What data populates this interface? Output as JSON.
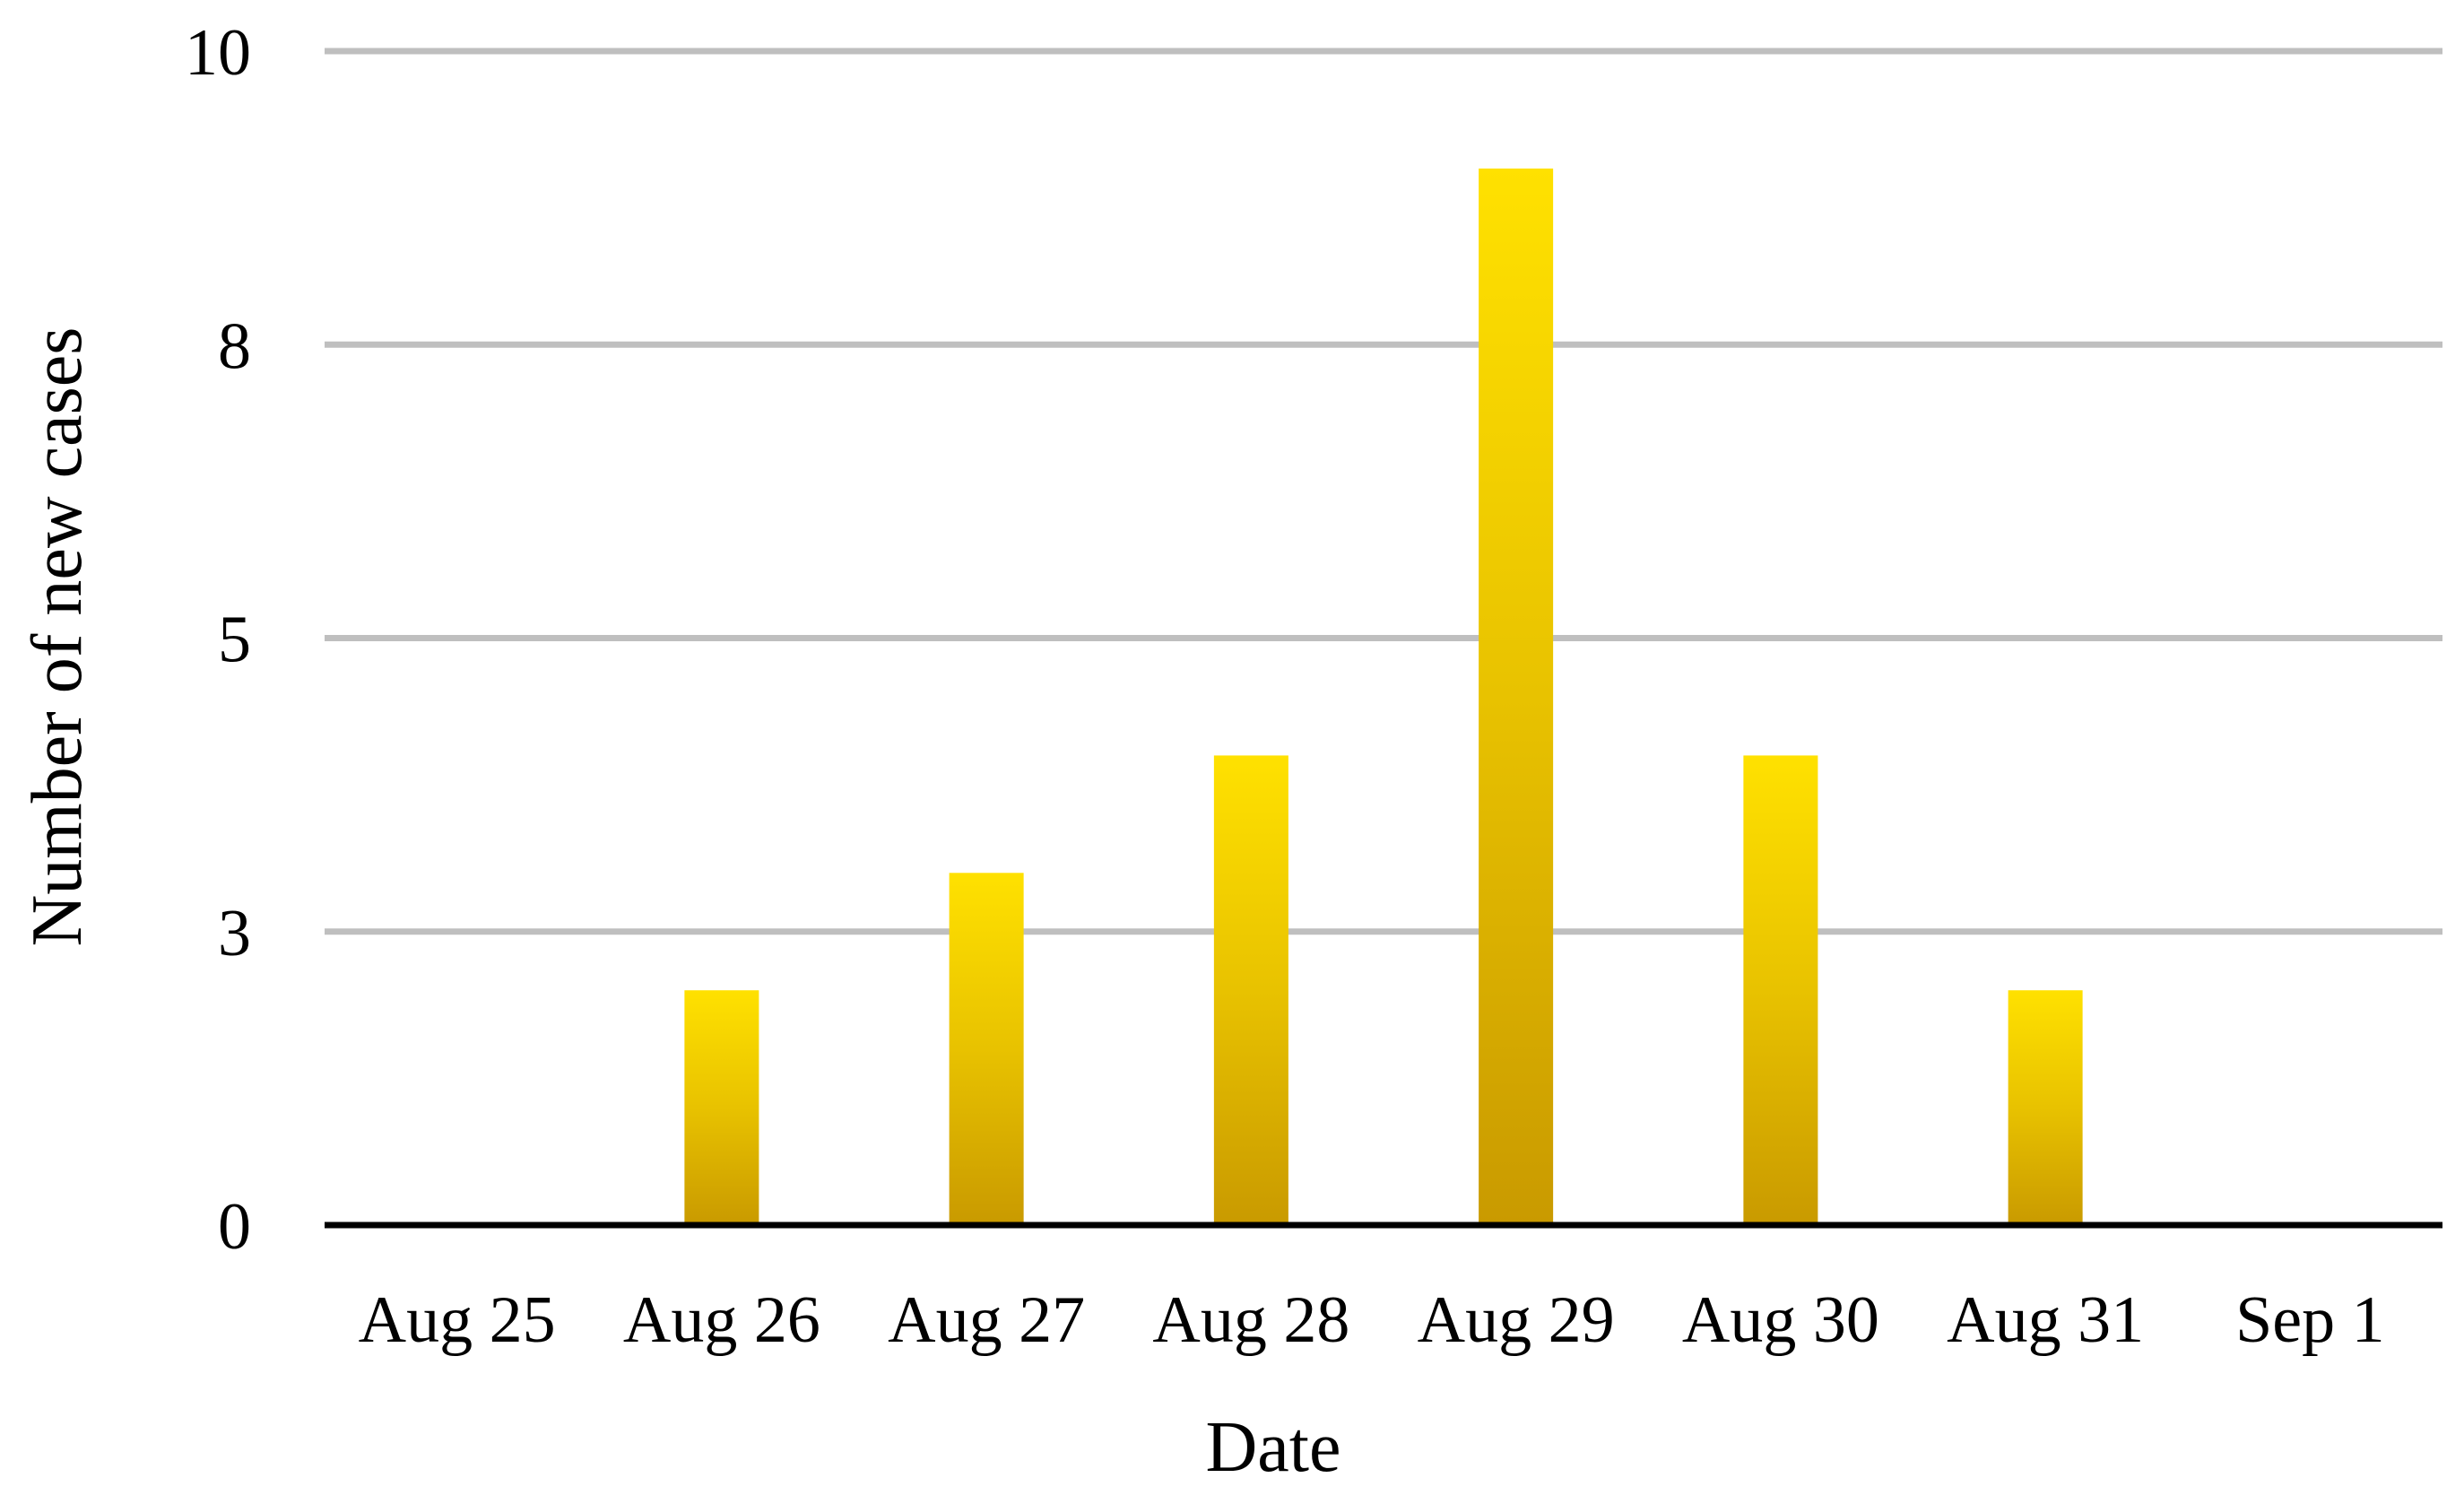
{
  "chart_data": {
    "type": "bar",
    "title": "",
    "xlabel": "Date",
    "ylabel": "Number of new cases",
    "categories": [
      "Aug 25",
      "Aug 26",
      "Aug 27",
      "Aug 28",
      "Aug 29",
      "Aug 30",
      "Aug 31",
      "Sep 1"
    ],
    "values": [
      0,
      2,
      3,
      4,
      9,
      4,
      2,
      0
    ],
    "ylim": [
      0,
      10
    ],
    "yticks": [
      {
        "value": 0,
        "label": "0"
      },
      {
        "value": 2.5,
        "label": "3"
      },
      {
        "value": 5,
        "label": "5"
      },
      {
        "value": 7.5,
        "label": "8"
      },
      {
        "value": 10,
        "label": "10"
      }
    ],
    "grid": true,
    "legend": "none",
    "colors": {
      "bar_top": "#ffe100",
      "bar_bottom": "#c99a00",
      "grid": "#bfbfbf",
      "axis": "#000000"
    }
  }
}
